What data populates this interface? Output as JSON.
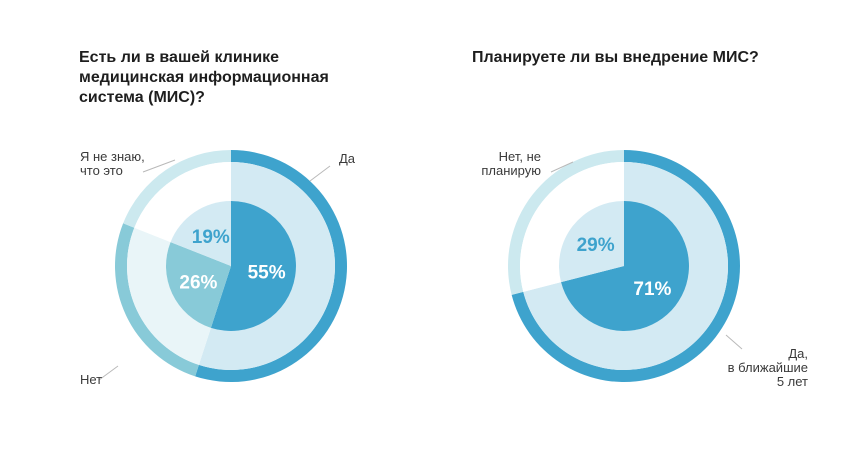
{
  "chart_data": [
    {
      "type": "pie",
      "title": "Есть ли в вашей клинике\nмедицинская информационная\nсистема (МИС)?",
      "slices": [
        {
          "label": "Да",
          "value": 55,
          "value_label": "55%",
          "outer_color": "#3ea3cd",
          "fill_color": "#d3eaf3",
          "inner_color": "#3ea3cd",
          "pct_color": "#ffffff"
        },
        {
          "label": "Нет",
          "value": 26,
          "value_label": "26%",
          "outer_color": "#88cad8",
          "fill_color": "#e9f5f8",
          "inner_color": "#88cad8",
          "pct_color": "#ffffff"
        },
        {
          "label": "Я не знаю,\nчто это",
          "value": 19,
          "value_label": "19%",
          "outer_color": "#cce9ef",
          "fill_color": "#ffffff",
          "inner_color": "#d3eaf3",
          "pct_color": "#3ea3cd"
        }
      ]
    },
    {
      "type": "pie",
      "title": "Планируете ли вы внедрение МИС?",
      "slices": [
        {
          "label": "Да,\nв ближайшие\n5 лет",
          "value": 71,
          "value_label": "71%",
          "outer_color": "#3ea3cd",
          "fill_color": "#d3eaf3",
          "inner_color": "#3ea3cd",
          "pct_color": "#ffffff"
        },
        {
          "label": "Нет, не\nпланирую",
          "value": 29,
          "value_label": "29%",
          "outer_color": "#cce9ef",
          "fill_color": "#ffffff",
          "inner_color": "#d3eaf3",
          "pct_color": "#3ea3cd"
        }
      ]
    }
  ]
}
